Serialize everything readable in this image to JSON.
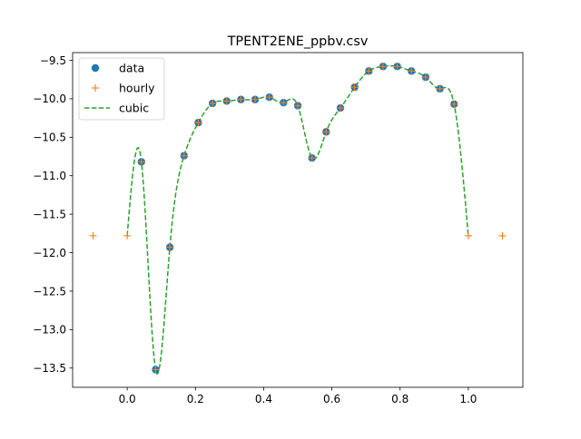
{
  "chart_data": {
    "type": "line",
    "title": "TPENT2ENE_ppbv.csv",
    "xlabel": "",
    "ylabel": "",
    "xlim": [
      -0.16,
      1.16
    ],
    "ylim": [
      -13.75,
      -9.4
    ],
    "x_ticks": [
      0.0,
      0.2,
      0.4,
      0.6,
      0.8,
      1.0
    ],
    "x_tick_labels": [
      "0.0",
      "0.2",
      "0.4",
      "0.6",
      "0.8",
      "1.0"
    ],
    "y_ticks": [
      -9.5,
      -10.0,
      -10.5,
      -11.0,
      -11.5,
      -12.0,
      -12.5,
      -13.0,
      -13.5
    ],
    "y_tick_labels": [
      "−9.5",
      "−10.0",
      "−10.5",
      "−11.0",
      "−11.5",
      "−12.0",
      "−12.5",
      "−13.0",
      "−13.5"
    ],
    "legend": {
      "position": "top-left",
      "entries": [
        "data",
        "hourly",
        "cubic"
      ]
    },
    "grid": false,
    "colors": {
      "data": "#1f77b4",
      "hourly": "#ff7f0e",
      "cubic": "#2ca02c"
    },
    "series": [
      {
        "name": "data",
        "style": "circle-markers",
        "x": [
          0.0417,
          0.0833,
          0.125,
          0.1667,
          0.2083,
          0.25,
          0.2917,
          0.3333,
          0.375,
          0.4167,
          0.4583,
          0.5,
          0.5417,
          0.5833,
          0.625,
          0.6667,
          0.7083,
          0.75,
          0.7917,
          0.8333,
          0.875,
          0.9167,
          0.9583
        ],
        "y": [
          -10.82,
          -13.52,
          -11.93,
          -10.74,
          -10.31,
          -10.06,
          -10.03,
          -10.01,
          -10.01,
          -9.98,
          -10.05,
          -10.09,
          -10.77,
          -10.43,
          -10.12,
          -9.85,
          -9.64,
          -9.58,
          -9.58,
          -9.64,
          -9.72,
          -9.87,
          -10.07
        ]
      },
      {
        "name": "hourly",
        "style": "plus-markers",
        "x": [
          -0.1,
          0.0,
          0.0417,
          0.0833,
          0.125,
          0.1667,
          0.2083,
          0.25,
          0.2917,
          0.3333,
          0.375,
          0.4167,
          0.4583,
          0.5,
          0.5417,
          0.5833,
          0.625,
          0.6667,
          0.7083,
          0.75,
          0.7917,
          0.8333,
          0.875,
          0.9167,
          0.9583,
          1.0,
          1.1
        ],
        "y": [
          -11.78,
          -11.78,
          -10.82,
          -13.52,
          -11.93,
          -10.74,
          -10.31,
          -10.06,
          -10.03,
          -10.01,
          -10.01,
          -9.98,
          -10.05,
          -10.09,
          -10.77,
          -10.43,
          -10.12,
          -9.85,
          -9.64,
          -9.58,
          -9.58,
          -9.64,
          -9.72,
          -9.87,
          -10.07,
          -11.78,
          -11.78
        ]
      },
      {
        "name": "cubic",
        "style": "dashed-line",
        "x": [
          0.0,
          0.0417,
          0.0833,
          0.125,
          0.1667,
          0.2083,
          0.25,
          0.2917,
          0.3333,
          0.375,
          0.4167,
          0.4583,
          0.5,
          0.5417,
          0.5833,
          0.625,
          0.6667,
          0.7083,
          0.75,
          0.7917,
          0.8333,
          0.875,
          0.9167,
          0.9583,
          1.0
        ],
        "y": [
          -11.78,
          -10.82,
          -13.52,
          -11.93,
          -10.74,
          -10.31,
          -10.06,
          -10.03,
          -10.01,
          -10.01,
          -9.98,
          -10.05,
          -10.09,
          -10.77,
          -10.43,
          -10.12,
          -9.85,
          -9.64,
          -9.58,
          -9.58,
          -9.64,
          -9.72,
          -9.87,
          -10.07,
          -11.78
        ]
      }
    ]
  }
}
